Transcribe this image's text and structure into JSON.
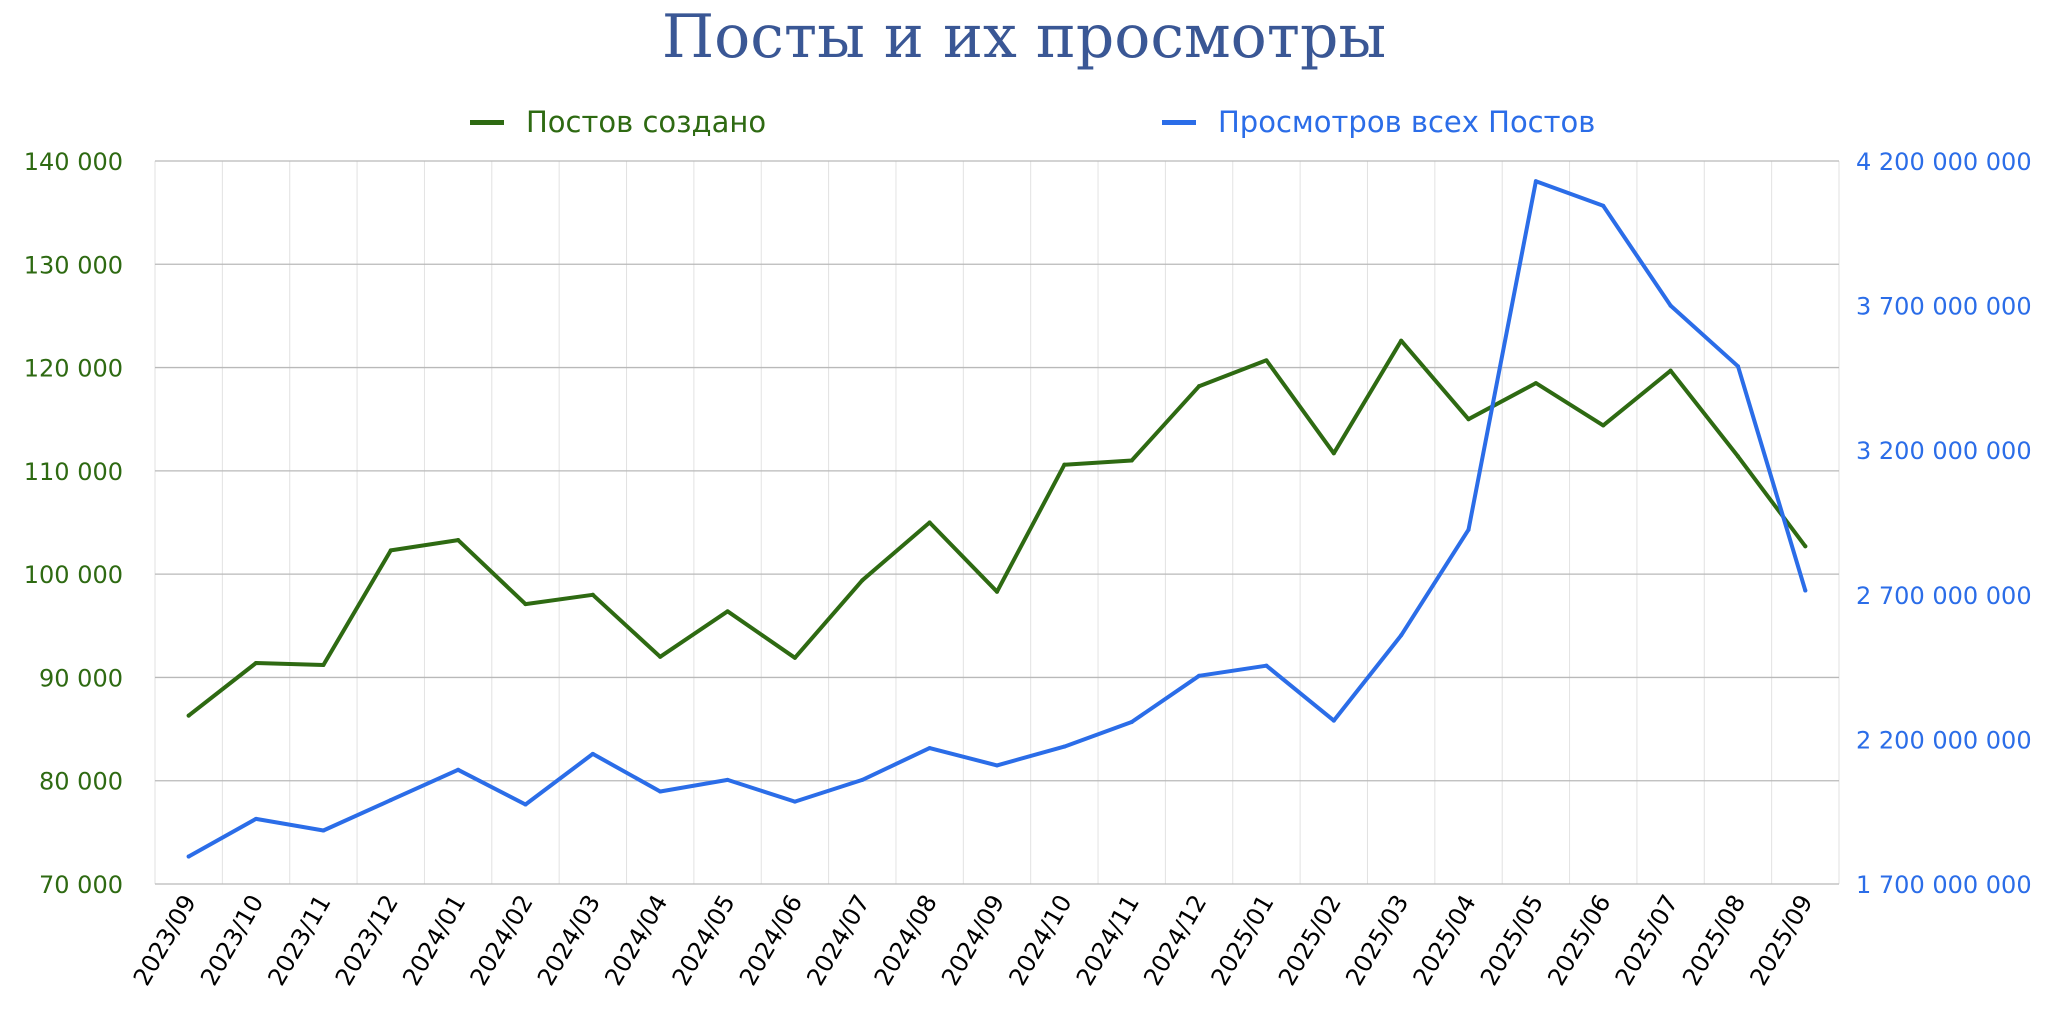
{
  "chart_data": {
    "type": "line",
    "title": "Посты и их просмотры",
    "legend_placement": "top",
    "grid": true,
    "x": [
      "2023/09",
      "2023/10",
      "2023/11",
      "2023/12",
      "2024/01",
      "2024/02",
      "2024/03",
      "2024/04",
      "2024/05",
      "2024/06",
      "2024/07",
      "2024/08",
      "2024/09",
      "2024/10",
      "2024/11",
      "2024/12",
      "2025/01",
      "2025/02",
      "2025/03",
      "2025/04",
      "2025/05",
      "2025/06",
      "2025/07",
      "2025/08",
      "2025/09"
    ],
    "left_axis": {
      "range": [
        70000,
        140000
      ],
      "ticks": [
        70000,
        80000,
        90000,
        100000,
        110000,
        120000,
        130000,
        140000
      ],
      "tick_labels": [
        "70 000",
        "80 000",
        "90 000",
        "100 000",
        "110 000",
        "120 000",
        "130 000",
        "140 000"
      ],
      "color": "#2e6a12"
    },
    "right_axis": {
      "range": [
        1700000000,
        4200000000
      ],
      "ticks": [
        1700000000,
        2200000000,
        2700000000,
        3200000000,
        3700000000,
        4200000000
      ],
      "tick_labels": [
        "1 700 000 000",
        "2 200 000 000",
        "2 700 000 000",
        "3 200 000 000",
        "3 700 000 000",
        "4 200 000 000"
      ],
      "color": "#2b6de8"
    },
    "series": [
      {
        "name": "Постов создано",
        "axis": "left",
        "color": "#2e6a12",
        "values": [
          86300,
          91400,
          91200,
          102300,
          103300,
          97100,
          98000,
          92000,
          96400,
          91900,
          99400,
          105000,
          98300,
          110600,
          111000,
          118200,
          120700,
          111700,
          122600,
          115000,
          118500,
          114400,
          119700,
          111400,
          102700
        ]
      },
      {
        "name": "Просмотров всех Постов",
        "axis": "right",
        "color": "#2b6de8",
        "values": [
          1795000000,
          1925000000,
          1885000000,
          1990000000,
          2095000000,
          1975000000,
          2150000000,
          2020000000,
          2060000000,
          1985000000,
          2060000000,
          2170000000,
          2110000000,
          2175000000,
          2260000000,
          2420000000,
          2455000000,
          2265000000,
          2560000000,
          2925000000,
          4130000000,
          4045000000,
          3700000000,
          3490000000,
          2715000000
        ]
      }
    ]
  }
}
